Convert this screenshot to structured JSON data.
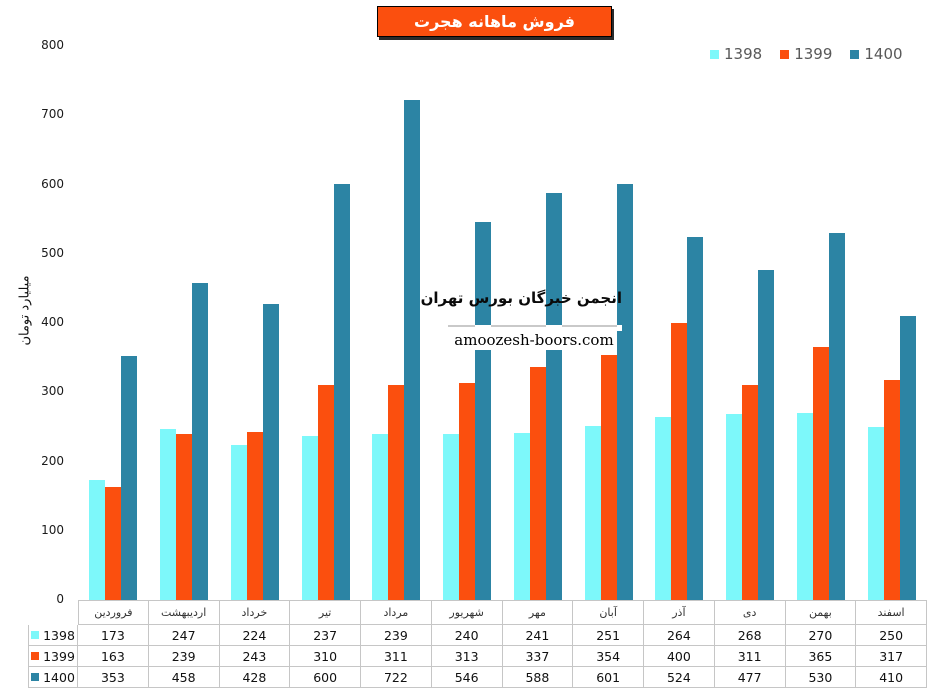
{
  "title_box": {
    "bg": "#FB4F0E",
    "border": "#000000",
    "text_color": "#FFFFFF"
  },
  "watermark": {
    "line1": "انجمن خبرگان بورس تهران",
    "line2": "amoozesh-boors.com",
    "divider_color": "#C9C9C9"
  },
  "palette": {
    "series_1398": "#7DF8FA",
    "series_1399": "#FB4F0E",
    "series_1400": "#2C84A4",
    "legend_text": "#595959",
    "table_border": "#C6C6C6"
  },
  "chart_data": {
    "type": "bar",
    "title": "فروش ماهانه هجرت",
    "ylabel": "میلیارد تومان",
    "xlabel": "",
    "ylim": [
      0,
      800
    ],
    "yticks": [
      0,
      100,
      200,
      300,
      400,
      500,
      600,
      700,
      800
    ],
    "grid": false,
    "legend_position": "top-right",
    "data_table_shown": true,
    "categories": [
      "فروردین",
      "اردیبهشت",
      "خرداد",
      "تیر",
      "مرداد",
      "شهریور",
      "مهر",
      "آبان",
      "آذر",
      "دی",
      "بهمن",
      "اسفند"
    ],
    "series": [
      {
        "name": "1398",
        "color": "#7DF8FA",
        "values": [
          173,
          247,
          224,
          237,
          239,
          240,
          241,
          251,
          264,
          268,
          270,
          250
        ]
      },
      {
        "name": "1399",
        "color": "#FB4F0E",
        "values": [
          163,
          239,
          243,
          310,
          311,
          313,
          337,
          354,
          400,
          311,
          365,
          317
        ]
      },
      {
        "name": "1400",
        "color": "#2C84A4",
        "values": [
          353,
          458,
          428,
          600,
          722,
          546,
          588,
          601,
          524,
          477,
          530,
          410
        ]
      }
    ]
  }
}
